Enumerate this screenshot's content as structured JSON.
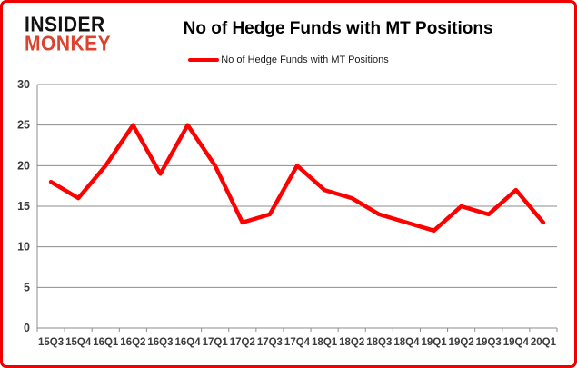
{
  "brand": {
    "line1": "INSIDER",
    "line2": "MONKEY"
  },
  "header": {
    "title": "No of Hedge Funds with MT Positions"
  },
  "legend": {
    "label": "No of Hedge Funds with MT Positions"
  },
  "colors": {
    "series": "#ff0000",
    "logo_black": "#111111",
    "logo_red": "#d9432f",
    "frame_border": "#f10000",
    "grid": "#8c8c8c",
    "axis": "#8c8c8c",
    "tick_text": "#3b3b3b"
  },
  "chart_data": {
    "type": "line",
    "title": "No of Hedge Funds with MT Positions",
    "categories": [
      "15Q3",
      "15Q4",
      "16Q1",
      "16Q2",
      "16Q3",
      "16Q4",
      "17Q1",
      "17Q2",
      "17Q3",
      "17Q4",
      "18Q1",
      "18Q2",
      "18Q3",
      "18Q4",
      "19Q1",
      "19Q2",
      "19Q3",
      "19Q4",
      "20Q1"
    ],
    "series": [
      {
        "name": "No of Hedge Funds with MT Positions",
        "values": [
          18,
          16,
          20,
          25,
          19,
          25,
          20,
          13,
          14,
          20,
          17,
          16,
          14,
          13,
          12,
          15,
          14,
          17,
          13
        ]
      }
    ],
    "xlabel": "",
    "ylabel": "",
    "ylim": [
      0,
      30
    ],
    "ytick_step": 5,
    "grid": true,
    "legend_position": "top-center"
  }
}
